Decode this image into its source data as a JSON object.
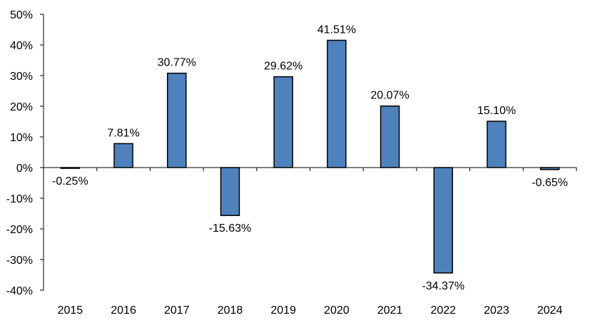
{
  "chart_data": {
    "type": "bar",
    "categories": [
      "2015",
      "2016",
      "2017",
      "2018",
      "2019",
      "2020",
      "2021",
      "2022",
      "2023",
      "2024"
    ],
    "values": [
      -0.25,
      7.81,
      30.77,
      -15.63,
      29.62,
      41.51,
      20.07,
      -34.37,
      15.1,
      -0.65
    ],
    "data_labels": [
      "-0.25%",
      "7.81%",
      "30.77%",
      "-15.63%",
      "29.62%",
      "41.51%",
      "20.07%",
      "-34.37%",
      "15.10%",
      "-0.65%"
    ],
    "y_ticks": [
      50,
      40,
      30,
      20,
      10,
      0,
      -10,
      -20,
      -30,
      -40
    ],
    "y_tick_labels": [
      "50%",
      "40%",
      "30%",
      "20%",
      "10%",
      "0%",
      "-10%",
      "-20%",
      "-30%",
      "-40%"
    ],
    "ylim": [
      -40,
      50
    ],
    "grid": false,
    "legend": "none",
    "bar_color": "#4F81BD",
    "bar_border_color": "#000000"
  }
}
